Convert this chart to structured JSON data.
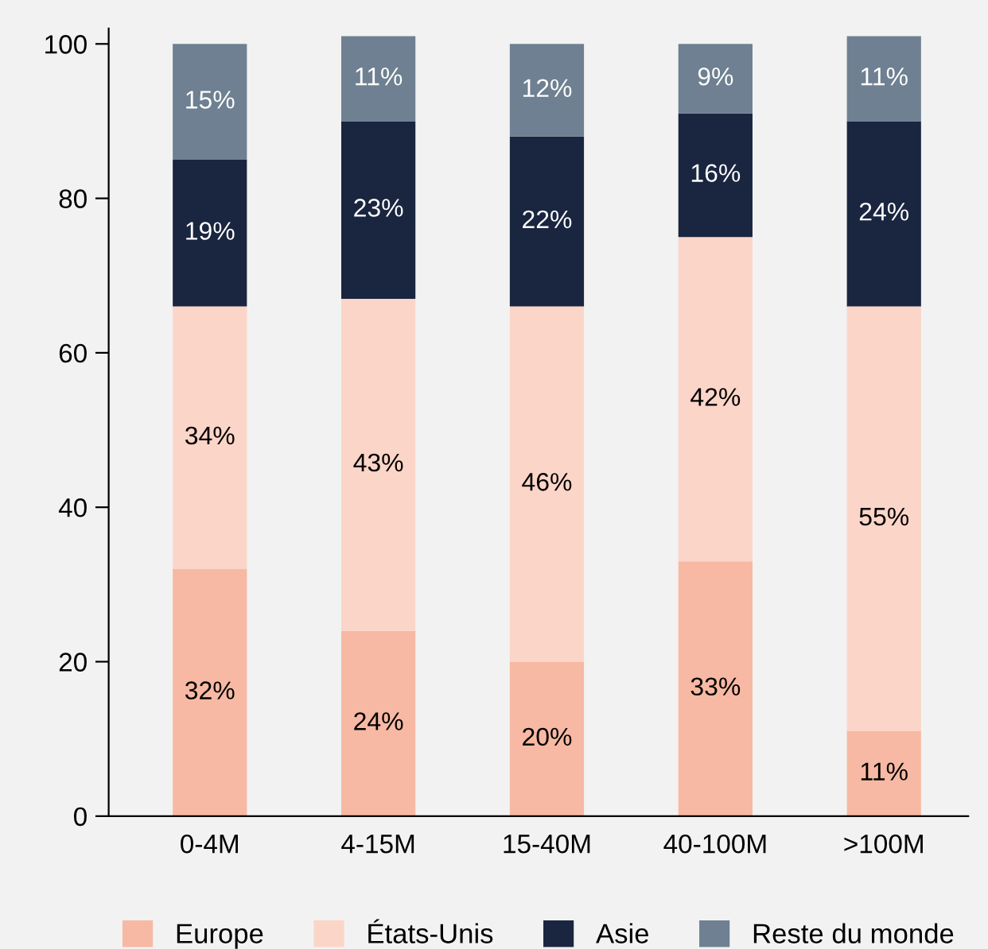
{
  "chart_data": {
    "type": "bar",
    "stacked": true,
    "categories": [
      "0-4M",
      "4-15M",
      "15-40M",
      "40-100M",
      ">100M"
    ],
    "series": [
      {
        "name": "Europe",
        "color": "#f7b9a3",
        "values": [
          32,
          24,
          20,
          33,
          11
        ],
        "value_labels": [
          "32%",
          "24%",
          "20%",
          "33%",
          "11%"
        ]
      },
      {
        "name": "États-Unis",
        "color": "#fbd5c8",
        "values": [
          34,
          43,
          46,
          42,
          55
        ],
        "value_labels": [
          "34%",
          "43%",
          "46%",
          "42%",
          "55%"
        ]
      },
      {
        "name": "Asie",
        "color": "#1a2540",
        "values": [
          19,
          23,
          22,
          16,
          24
        ],
        "value_labels": [
          "19%",
          "23%",
          "22%",
          "16%",
          "24%"
        ]
      },
      {
        "name": "Reste du monde",
        "color": "#6e8091",
        "values": [
          15,
          11,
          12,
          9,
          11
        ],
        "value_labels": [
          "15%",
          "11%",
          "12%",
          "9%",
          "11%"
        ]
      }
    ],
    "ylim": [
      0,
      102
    ],
    "yticks": [
      0,
      20,
      40,
      60,
      80,
      100
    ],
    "grid": false,
    "legend": "bottom"
  }
}
